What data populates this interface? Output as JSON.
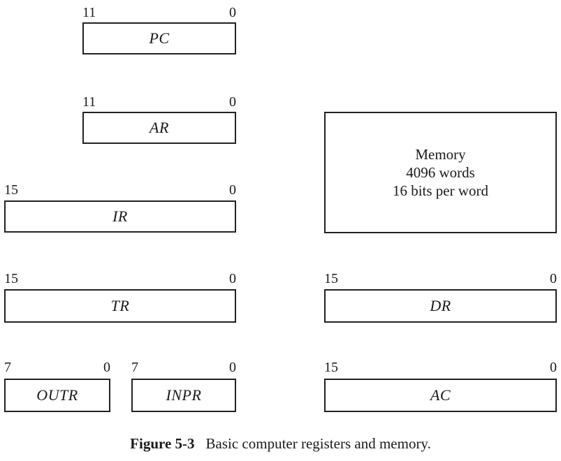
{
  "registers": {
    "pc": {
      "name": "PC",
      "msb": "11",
      "lsb": "0"
    },
    "ar": {
      "name": "AR",
      "msb": "11",
      "lsb": "0"
    },
    "ir": {
      "name": "IR",
      "msb": "15",
      "lsb": "0"
    },
    "tr": {
      "name": "TR",
      "msb": "15",
      "lsb": "0"
    },
    "outr": {
      "name": "OUTR",
      "msb": "7",
      "lsb": "0"
    },
    "inpr": {
      "name": "INPR",
      "msb": "7",
      "lsb": "0"
    },
    "dr": {
      "name": "DR",
      "msb": "15",
      "lsb": "0"
    },
    "ac": {
      "name": "AC",
      "msb": "15",
      "lsb": "0"
    }
  },
  "memory": {
    "line1": "Memory",
    "line2": "4096 words",
    "line3": "16 bits per word"
  },
  "caption": {
    "number": "Figure 5-3",
    "text": "Basic computer registers and memory."
  }
}
